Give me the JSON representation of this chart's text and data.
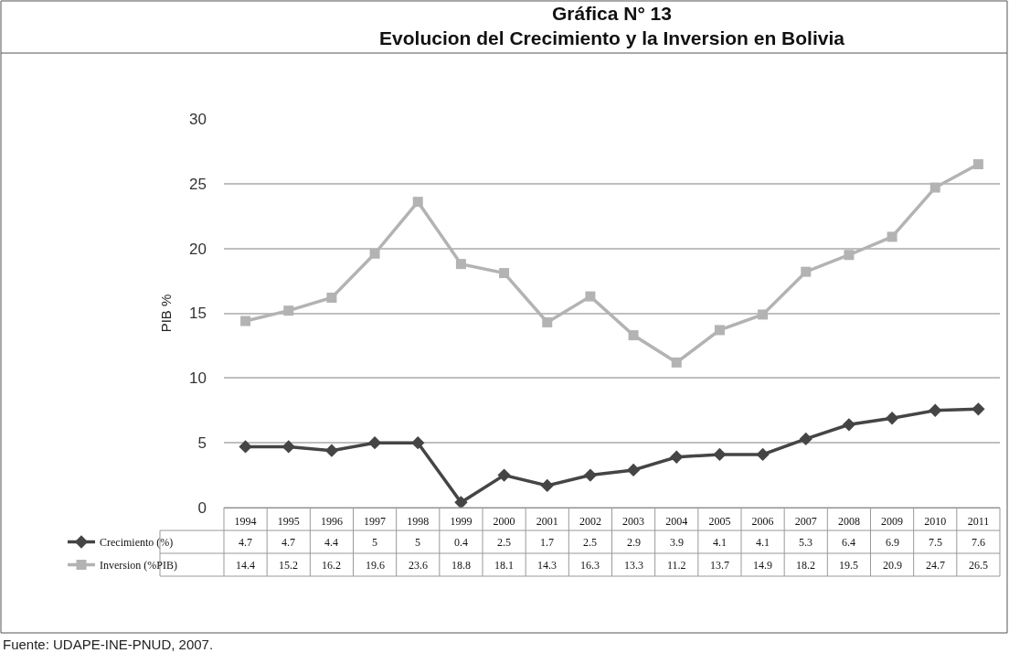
{
  "chart_data": {
    "type": "line",
    "title": "Gráfica N° 13\nEvolucion del Crecimiento y la Inversion en Bolivia",
    "ylabel": "PIB %",
    "categories": [
      "1994",
      "1995",
      "1996",
      "1997",
      "1998",
      "1999",
      "2000",
      "2001",
      "2002",
      "2003",
      "2004",
      "2005",
      "2006",
      "2007",
      "2008",
      "2009",
      "2010",
      "2011"
    ],
    "series": [
      {
        "name": "Crecimiento (%)",
        "color": "#454545",
        "marker": "diamond",
        "values": [
          4.7,
          4.7,
          4.4,
          5,
          5,
          0.4,
          2.5,
          1.7,
          2.5,
          2.9,
          3.9,
          4.1,
          4.1,
          5.3,
          6.4,
          6.9,
          7.5,
          7.6
        ]
      },
      {
        "name": "Inversion (%PIB)",
        "color": "#b3b3b3",
        "marker": "square",
        "values": [
          14.4,
          15.2,
          16.2,
          19.6,
          23.6,
          18.8,
          18.1,
          14.3,
          16.3,
          13.3,
          11.2,
          13.7,
          14.9,
          18.2,
          19.5,
          20.9,
          24.7,
          26.5
        ]
      }
    ],
    "ylim": [
      0,
      30
    ],
    "yticks": [
      0,
      5,
      10,
      15,
      20,
      25,
      30
    ],
    "grid": "y",
    "legend": "bottom left",
    "data_labels": true,
    "annotations": [
      "Fuente: UDAPE-INE-PNUD, 2007."
    ]
  }
}
